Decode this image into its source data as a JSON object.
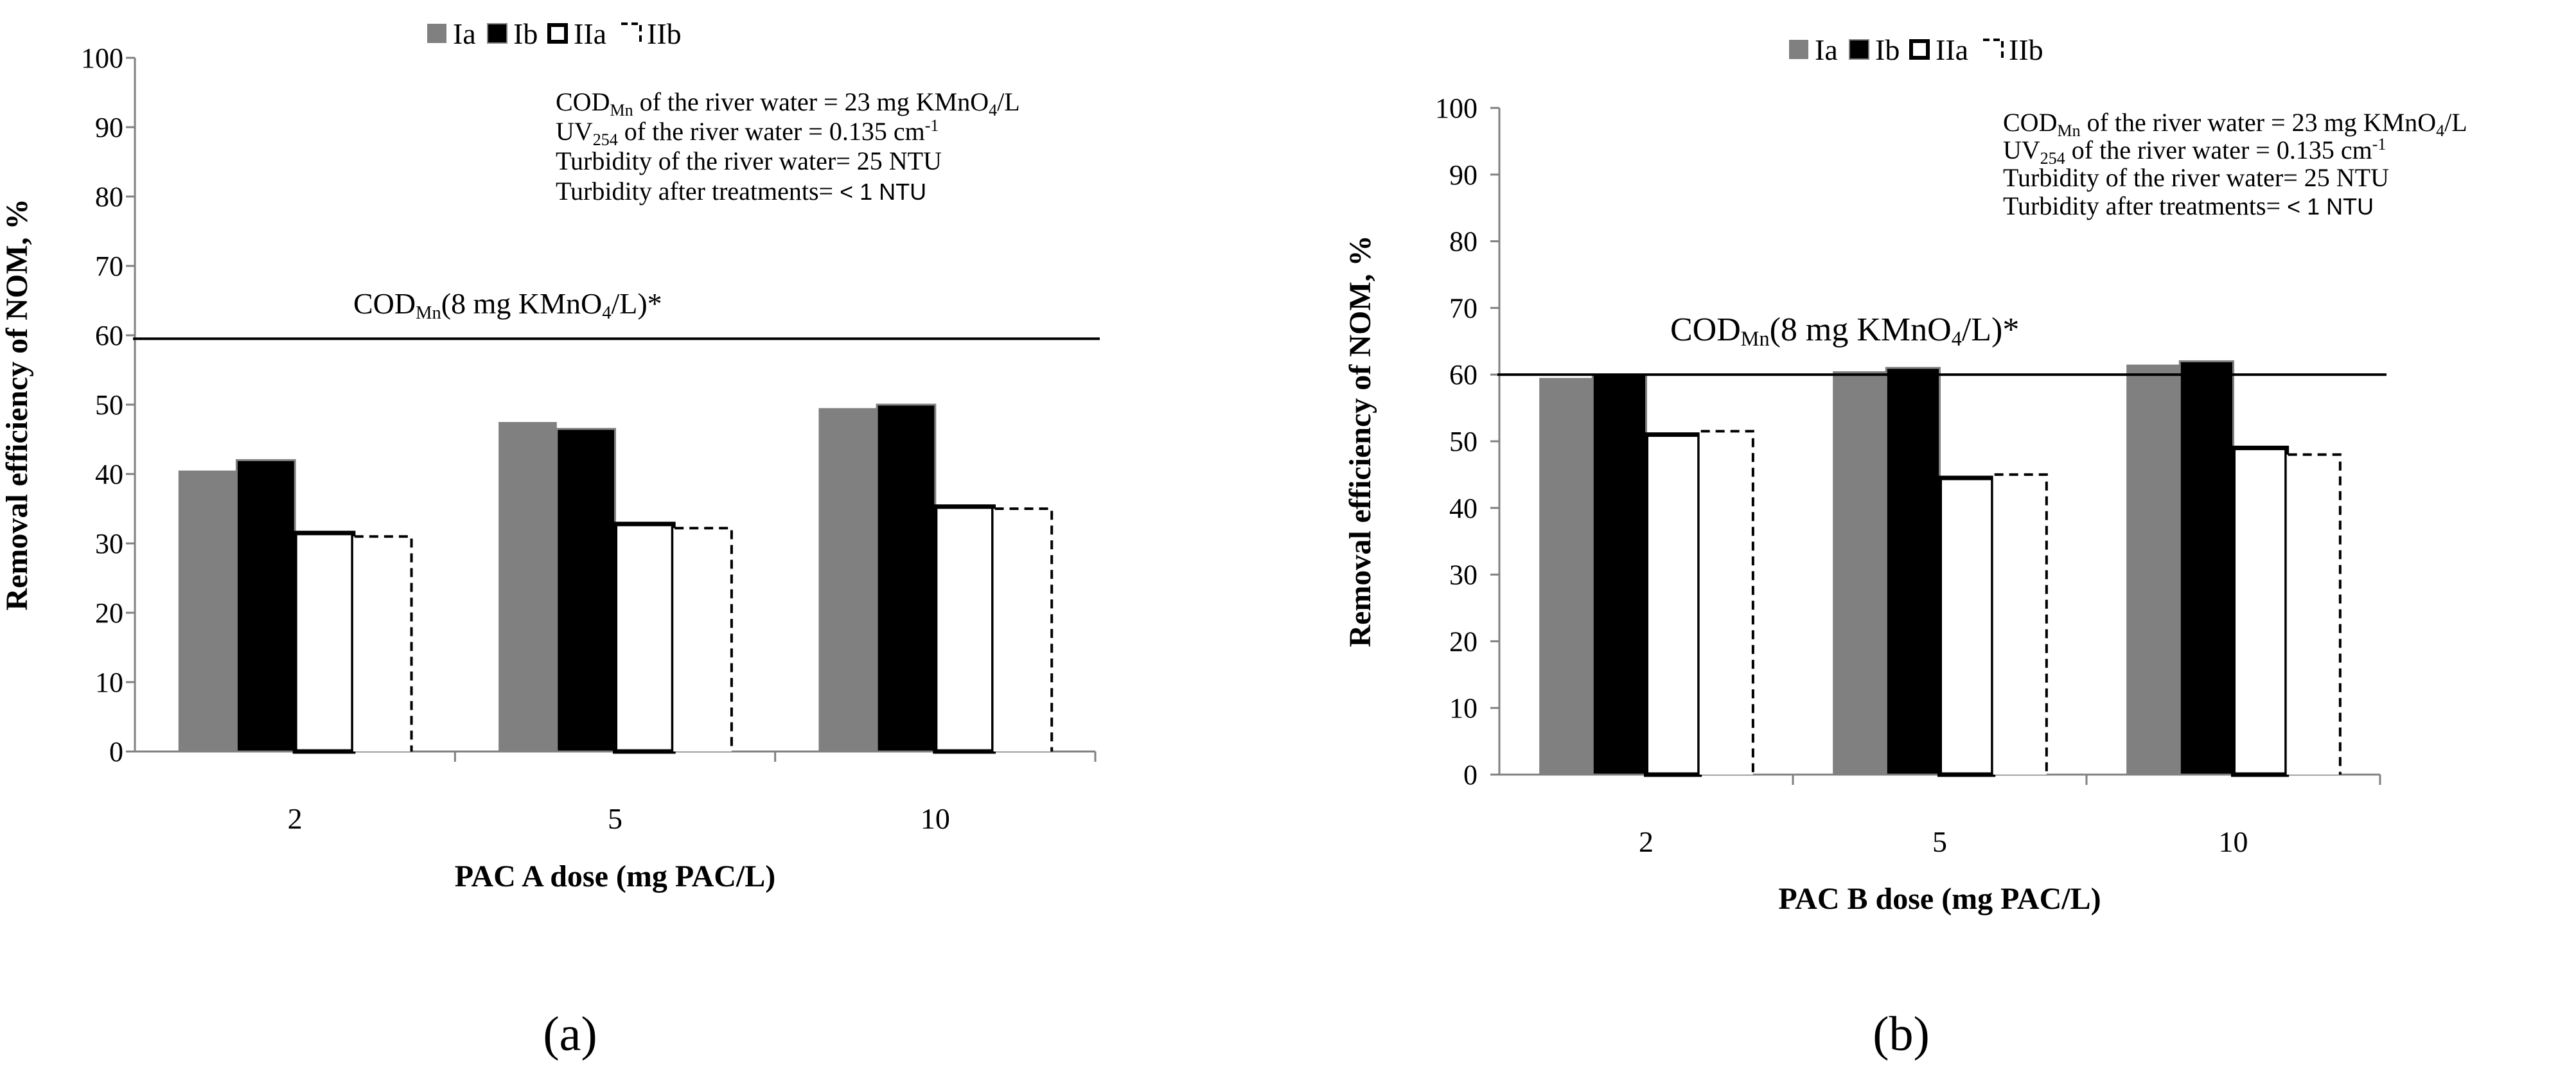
{
  "colors": {
    "Ia": "#808080",
    "Ib": "#000000",
    "IIa": "#ffffff",
    "IIb": "#ffffff",
    "axis": "#808080",
    "reference_line": "#000000"
  },
  "legend": {
    "Ia": "Ia",
    "Ib": "Ib",
    "IIa": "IIa",
    "IIb": "IIb"
  },
  "annotations": {
    "line1_prefix": "COD",
    "line1_sub": "Mn",
    "line1_mid": " of  the river water = 23 mg KMnO",
    "line1_sub2": "4",
    "line1_suffix": "/L",
    "line2_prefix": "UV",
    "line2_sub": "254",
    "line2_mid": " of  the river water = 0.135 cm",
    "line2_sup": "-1",
    "line3": "Turbidity of the river water= 25 NTU",
    "line4_prefix": "Turbidity after treatments= ",
    "line4_suffix": "< 1 NTU"
  },
  "reference": {
    "label_prefix": "COD",
    "label_sub": "Mn",
    "label_mid": "(8 mg KMnO",
    "label_sub2": "4",
    "label_suffix": "/L)*"
  },
  "chart_data": [
    {
      "type": "bar",
      "panel_label": "(a)",
      "categories": [
        "2",
        "5",
        "10"
      ],
      "series": [
        {
          "name": "Ia",
          "values": [
            40.5,
            47.5,
            49.5
          ]
        },
        {
          "name": "Ib",
          "values": [
            42,
            46.5,
            50
          ]
        },
        {
          "name": "IIa",
          "values": [
            31.5,
            32.8,
            35.3
          ]
        },
        {
          "name": "IIb",
          "values": [
            31,
            32.2,
            35
          ]
        }
      ],
      "reference_value": 59.5,
      "xlabel": "PAC A dose (mg PAC/L)",
      "ylabel": "Removal efficiency of NOM, %",
      "ylim": [
        0,
        100
      ],
      "yticks": [
        "0",
        "10",
        "20",
        "30",
        "40",
        "50",
        "60",
        "70",
        "80",
        "90",
        "100"
      ]
    },
    {
      "type": "bar",
      "panel_label": "(b)",
      "categories": [
        "2",
        "5",
        "10"
      ],
      "series": [
        {
          "name": "Ia",
          "values": [
            59.5,
            60.5,
            61.5
          ]
        },
        {
          "name": "Ib",
          "values": [
            60,
            61,
            62
          ]
        },
        {
          "name": "IIa",
          "values": [
            51,
            44.5,
            49
          ]
        },
        {
          "name": "IIb",
          "values": [
            51.5,
            45,
            48
          ]
        }
      ],
      "reference_value": 60,
      "xlabel": "PAC B dose (mg PAC/L)",
      "ylabel": "Removal efficiency of NOM, %",
      "ylim": [
        0,
        100
      ],
      "yticks": [
        "0",
        "10",
        "20",
        "30",
        "40",
        "50",
        "60",
        "70",
        "80",
        "90",
        "100"
      ]
    }
  ]
}
